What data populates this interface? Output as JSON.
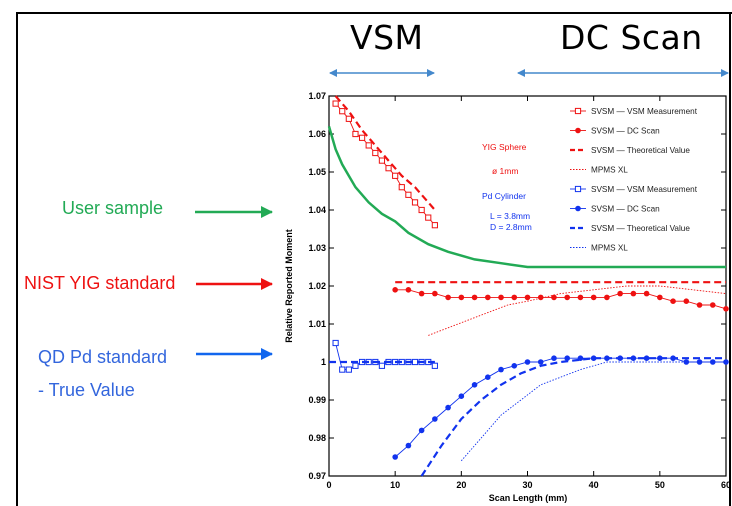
{
  "headers": {
    "vsm": "VSM",
    "dc_scan": "DC Scan"
  },
  "side_labels": {
    "user_sample": "User sample",
    "nist_yig": "NIST YIG standard",
    "qd_pd": "QD Pd standard",
    "true_value": "- True Value"
  },
  "colors": {
    "green": "#22aa55",
    "red": "#ee1111",
    "blue": "#1133ee",
    "arrow_blue": "#4488cc"
  },
  "icons": {
    "range_arrow": "double-headed-arrow-icon",
    "pointer_arrow": "right-arrow-icon"
  },
  "chart_data": {
    "type": "scatter",
    "xlabel": "Scan Length (mm)",
    "ylabel": "Relative Reported Moment",
    "xlim": [
      0,
      60
    ],
    "ylim": [
      0.97,
      1.07
    ],
    "x_ticks": [
      0,
      10,
      20,
      30,
      40,
      50,
      60
    ],
    "y_ticks": [
      0.97,
      0.98,
      0.99,
      1,
      1.01,
      1.02,
      1.03,
      1.04,
      1.05,
      1.06,
      1.07
    ],
    "y_tick_labels": [
      "0.97",
      "0.98",
      "0.99",
      "1",
      "1.01",
      "1.02",
      "1.03",
      "1.04",
      "1.05",
      "1.06",
      "1.07"
    ],
    "grid": false,
    "annotations": {
      "yig_title": "YIG Sphere",
      "yig_dim": "ø 1mm",
      "pd_title": "Pd Cylinder",
      "pd_l": "L = 3.8mm",
      "pd_d": "D = 2.8mm"
    },
    "legend": {
      "placement": "top-right",
      "entries": [
        {
          "label": "SVSM — VSM Measurement",
          "color": "#ee1111",
          "style": "open-square-line"
        },
        {
          "label": "SVSM — DC Scan",
          "color": "#ee1111",
          "style": "filled-circle-line"
        },
        {
          "label": "SVSM — Theoretical Value",
          "color": "#ee1111",
          "style": "dashed"
        },
        {
          "label": "MPMS XL",
          "color": "#ee1111",
          "style": "dotted"
        },
        {
          "label": "SVSM — VSM Measurement",
          "color": "#1133ee",
          "style": "open-square-line"
        },
        {
          "label": "SVSM — DC Scan",
          "color": "#1133ee",
          "style": "filled-circle-line"
        },
        {
          "label": "SVSM — Theoretical Value",
          "color": "#1133ee",
          "style": "dashed"
        },
        {
          "label": "MPMS XL",
          "color": "#1133ee",
          "style": "dotted"
        }
      ]
    },
    "series": [
      {
        "id": "yig-vsm",
        "color": "#ee1111",
        "style": "open-square-line",
        "x": [
          1,
          2,
          3,
          4,
          5,
          6,
          7,
          8,
          9,
          10,
          11,
          12,
          13,
          14,
          15,
          16
        ],
        "y": [
          1.068,
          1.066,
          1.064,
          1.06,
          1.059,
          1.057,
          1.055,
          1.053,
          1.051,
          1.049,
          1.046,
          1.044,
          1.042,
          1.04,
          1.038,
          1.036
        ]
      },
      {
        "id": "yig-vsm-theory",
        "color": "#ee1111",
        "style": "dashed",
        "x": [
          1,
          3,
          5,
          7,
          9,
          11,
          13,
          15,
          16
        ],
        "y": [
          1.07,
          1.066,
          1.061,
          1.057,
          1.053,
          1.049,
          1.046,
          1.042,
          1.04
        ]
      },
      {
        "id": "yig-dc",
        "color": "#ee1111",
        "style": "filled-circle-line",
        "x": [
          10,
          12,
          14,
          16,
          18,
          20,
          22,
          24,
          26,
          28,
          30,
          32,
          34,
          36,
          38,
          40,
          42,
          44,
          46,
          48,
          50,
          52,
          54,
          56,
          58,
          60
        ],
        "y": [
          1.019,
          1.019,
          1.018,
          1.018,
          1.017,
          1.017,
          1.017,
          1.017,
          1.017,
          1.017,
          1.017,
          1.017,
          1.017,
          1.017,
          1.017,
          1.017,
          1.017,
          1.018,
          1.018,
          1.018,
          1.017,
          1.016,
          1.016,
          1.015,
          1.015,
          1.014
        ]
      },
      {
        "id": "yig-dc-theory",
        "color": "#ee1111",
        "style": "dashed",
        "x": [
          10,
          20,
          30,
          40,
          50,
          60
        ],
        "y": [
          1.021,
          1.021,
          1.021,
          1.021,
          1.021,
          1.021
        ]
      },
      {
        "id": "yig-mpms",
        "color": "#ee1111",
        "style": "dotted",
        "x": [
          15,
          18,
          21,
          24,
          27,
          30,
          35,
          40,
          45,
          50,
          55,
          60
        ],
        "y": [
          1.007,
          1.009,
          1.011,
          1.013,
          1.015,
          1.016,
          1.018,
          1.019,
          1.02,
          1.02,
          1.019,
          1.018
        ]
      },
      {
        "id": "user-sample",
        "color": "#22aa55",
        "style": "solid",
        "x": [
          0,
          1,
          2,
          3,
          4,
          6,
          8,
          10,
          12,
          15,
          18,
          22,
          26,
          30,
          35,
          40,
          45,
          50,
          55,
          60
        ],
        "y": [
          1.062,
          1.056,
          1.052,
          1.049,
          1.046,
          1.042,
          1.039,
          1.037,
          1.034,
          1.031,
          1.029,
          1.027,
          1.026,
          1.025,
          1.025,
          1.025,
          1.025,
          1.025,
          1.025,
          1.025
        ]
      },
      {
        "id": "pd-vsm",
        "color": "#1133ee",
        "style": "open-square-line",
        "x": [
          1,
          2,
          3,
          4,
          5,
          6,
          7,
          8,
          9,
          10,
          11,
          12,
          13,
          14,
          15,
          16
        ],
        "y": [
          1.005,
          0.998,
          0.998,
          0.999,
          1.0,
          1.0,
          1.0,
          0.999,
          1.0,
          1.0,
          1.0,
          1.0,
          1.0,
          1.0,
          1.0,
          0.999
        ]
      },
      {
        "id": "pd-vsm-theory",
        "color": "#1133ee",
        "style": "dashed",
        "x": [
          0,
          16
        ],
        "y": [
          1.0,
          1.0
        ]
      },
      {
        "id": "pd-dc",
        "color": "#1133ee",
        "style": "filled-circle-line",
        "x": [
          10,
          12,
          14,
          16,
          18,
          20,
          22,
          24,
          26,
          28,
          30,
          32,
          34,
          36,
          38,
          40,
          42,
          44,
          46,
          48,
          50,
          52,
          54,
          56,
          58,
          60
        ],
        "y": [
          0.975,
          0.978,
          0.982,
          0.985,
          0.988,
          0.991,
          0.994,
          0.996,
          0.998,
          0.999,
          1.0,
          1.0,
          1.001,
          1.001,
          1.001,
          1.001,
          1.001,
          1.001,
          1.001,
          1.001,
          1.001,
          1.001,
          1.0,
          1.0,
          1.0,
          1.0
        ]
      },
      {
        "id": "pd-dc-theory",
        "color": "#1133ee",
        "style": "dashed",
        "x": [
          14,
          17,
          20,
          23,
          26,
          29,
          32,
          35,
          40,
          50,
          60
        ],
        "y": [
          0.97,
          0.978,
          0.985,
          0.99,
          0.994,
          0.997,
          0.999,
          1.0,
          1.001,
          1.001,
          1.001
        ]
      },
      {
        "id": "pd-mpms",
        "color": "#1133ee",
        "style": "dotted",
        "x": [
          20,
          23,
          26,
          29,
          32,
          35,
          38,
          42,
          46,
          50,
          55,
          60
        ],
        "y": [
          0.974,
          0.98,
          0.986,
          0.99,
          0.994,
          0.996,
          0.998,
          1.0,
          1.0,
          1.0,
          1.0,
          1.0
        ]
      }
    ]
  }
}
